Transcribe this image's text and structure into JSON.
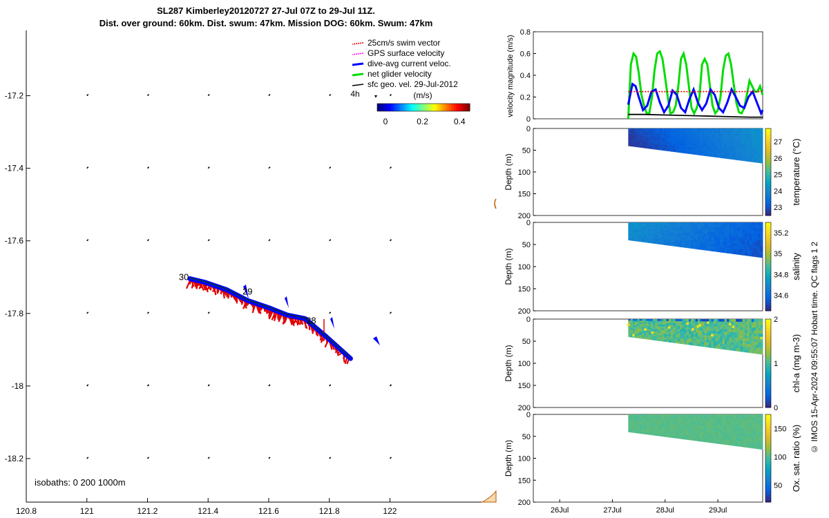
{
  "header": {
    "title_line1": "SL287 Kimberley20120727 27-Jul 07Z to 29-Jul 11Z.",
    "title_line2": "Dist. over ground: 60km. Dist. swum: 47km. Mission DOG: 60km. Swum: 47km"
  },
  "footer": {
    "credit": "© IMOS 15-Apr-2024 09:55:07 Hobart time. QC flags 1  2"
  },
  "colors": {
    "swim": "#e00000",
    "gps": "#ff00ff",
    "current": "#0000ff",
    "net": "#00dd00",
    "sfc": "#000000"
  },
  "chart_data": [
    {
      "type": "map",
      "name": "glider-track-map",
      "xlim": [
        120.8,
        122.35
      ],
      "ylim": [
        -18.32,
        -17.02
      ],
      "x_ticks": [
        120.8,
        121,
        121.2,
        121.4,
        121.6,
        121.8,
        122
      ],
      "x_tick_labels": [
        "120.8",
        "121",
        "121.2",
        "121.4",
        "121.6",
        "121.8",
        "122"
      ],
      "y_ticks": [
        -17.2,
        -17.4,
        -17.6,
        -17.8,
        -18,
        -18.2
      ],
      "y_tick_labels": [
        "-17.2",
        "-17.4",
        "-17.6",
        "-17.8",
        "-18",
        "-18.2"
      ],
      "legend": [
        {
          "label": "25cm/s swim vector",
          "color": "#e00000"
        },
        {
          "label": "GPS surface velocity",
          "color": "#ff00ff"
        },
        {
          "label": "dive-avg current veloc.",
          "color": "#0000ff"
        },
        {
          "label": "net glider velocity",
          "color": "#00dd00"
        },
        {
          "label": "sfc geo. vel. 29-Jul-2012",
          "color": "#000000"
        }
      ],
      "legend_extra": "4h",
      "colorbar": {
        "label": "(m/s)",
        "range": [
          0,
          0.5
        ],
        "ticks": [
          "0",
          "0.2",
          "0.4"
        ]
      },
      "isobaths_label": "isobaths: 0   200  1000m",
      "track": [
        {
          "lon": 121.34,
          "lat": -17.71
        },
        {
          "lon": 121.39,
          "lat": -17.72
        },
        {
          "lon": 121.46,
          "lat": -17.74
        },
        {
          "lon": 121.53,
          "lat": -17.77
        },
        {
          "lon": 121.6,
          "lat": -17.79
        },
        {
          "lon": 121.66,
          "lat": -17.81
        },
        {
          "lon": 121.72,
          "lat": -17.82
        },
        {
          "lon": 121.79,
          "lat": -17.87
        },
        {
          "lon": 121.87,
          "lat": -17.93
        }
      ],
      "day_labels": [
        {
          "text": "30",
          "lon": 121.32,
          "lat": -17.7
        },
        {
          "text": "29",
          "lon": 121.53,
          "lat": -17.74
        },
        {
          "text": "28",
          "lon": 121.74,
          "lat": -17.82
        }
      ],
      "sfc_vector_grid": {
        "lons": [
          121.0,
          121.2,
          121.4,
          121.6,
          121.8,
          122.0
        ],
        "lats": [
          -17.2,
          -17.4,
          -17.6,
          -17.8,
          -18.0,
          -18.2
        ]
      }
    },
    {
      "type": "line",
      "name": "velocity-magnitude",
      "ylabel": "velocity magnitude (m/s)",
      "ylim": [
        0,
        0.8
      ],
      "y_ticks": [
        0,
        0.2,
        0.4,
        0.6,
        0.8
      ],
      "xlim": [
        25.5,
        29.85
      ],
      "x_ticks": [
        26,
        27,
        28,
        29
      ],
      "x_tick_labels": [
        "26Jul",
        "27Jul",
        "28Jul",
        "29Jul"
      ],
      "series": [
        {
          "color": "#00dd00",
          "x": [
            27.3,
            27.35,
            27.4,
            27.45,
            27.5,
            27.55,
            27.6,
            27.65,
            27.7,
            27.75,
            27.8,
            27.85,
            27.9,
            27.95,
            28.0,
            28.05,
            28.1,
            28.15,
            28.2,
            28.25,
            28.3,
            28.35,
            28.4,
            28.45,
            28.5,
            28.55,
            28.6,
            28.65,
            28.7,
            28.75,
            28.8,
            28.85,
            28.9,
            28.95,
            29.0,
            29.05,
            29.1,
            29.15,
            29.2,
            29.25,
            29.3,
            29.35,
            29.4,
            29.45,
            29.5,
            29.55,
            29.6,
            29.65,
            29.7,
            29.75,
            29.8,
            29.85
          ],
          "values": [
            0.0,
            0.5,
            0.6,
            0.57,
            0.42,
            0.22,
            0.12,
            0.05,
            0.05,
            0.2,
            0.45,
            0.6,
            0.62,
            0.55,
            0.38,
            0.2,
            0.05,
            0.06,
            0.12,
            0.3,
            0.55,
            0.6,
            0.5,
            0.3,
            0.1,
            0.05,
            0.1,
            0.2,
            0.5,
            0.55,
            0.5,
            0.3,
            0.12,
            0.05,
            0.08,
            0.2,
            0.45,
            0.58,
            0.6,
            0.5,
            0.32,
            0.15,
            0.06,
            0.05,
            0.1,
            0.22,
            0.35,
            0.3,
            0.25,
            0.25,
            0.3,
            0.22
          ]
        },
        {
          "color": "#0000ff",
          "x": [
            27.3,
            27.38,
            27.44,
            27.5,
            27.58,
            27.66,
            27.74,
            27.82,
            27.9,
            27.98,
            28.06,
            28.14,
            28.22,
            28.3,
            28.38,
            28.46,
            28.54,
            28.62,
            28.7,
            28.78,
            28.86,
            28.94,
            29.02,
            29.1,
            29.18,
            29.26,
            29.34,
            29.42,
            29.5,
            29.58,
            29.66,
            29.74,
            29.82,
            29.85
          ],
          "values": [
            0.13,
            0.32,
            0.3,
            0.2,
            0.08,
            0.12,
            0.25,
            0.27,
            0.15,
            0.06,
            0.12,
            0.26,
            0.22,
            0.1,
            0.06,
            0.18,
            0.27,
            0.15,
            0.08,
            0.14,
            0.27,
            0.22,
            0.1,
            0.06,
            0.15,
            0.27,
            0.2,
            0.12,
            0.1,
            0.2,
            0.25,
            0.15,
            0.05,
            0.08
          ]
        },
        {
          "color": "#e00000",
          "style": "dotted",
          "x": [
            27.3,
            29.85
          ],
          "values": [
            0.25,
            0.25
          ]
        },
        {
          "color": "#000000",
          "x": [
            27.3,
            27.6,
            28.0,
            28.4,
            28.8,
            29.2,
            29.6,
            29.85
          ],
          "values": [
            0.04,
            0.04,
            0.035,
            0.03,
            0.025,
            0.02,
            0.015,
            0.015
          ]
        }
      ]
    },
    {
      "type": "heatmap",
      "name": "temperature-section",
      "ylabel": "Depth (m)",
      "ylim": [
        0,
        200
      ],
      "y_ticks": [
        0,
        50,
        100,
        150,
        200
      ],
      "colorbar_label": "temperature (°C)",
      "colorbar_range": [
        22.5,
        27.8
      ],
      "colorbar_ticks": [
        23,
        24,
        25,
        26,
        27
      ],
      "x_range": [
        27.3,
        29.85
      ],
      "max_depth_start": 40,
      "max_depth_end": 80,
      "value_start": 22.8,
      "value_end": 24.2,
      "colormap": "parula"
    },
    {
      "type": "heatmap",
      "name": "salinity-section",
      "ylabel": "Depth (m)",
      "ylim": [
        0,
        200
      ],
      "y_ticks": [
        0,
        50,
        100,
        150,
        200
      ],
      "colorbar_label": "salinity",
      "colorbar_range": [
        34.45,
        35.3
      ],
      "colorbar_ticks": [
        34.6,
        34.8,
        35,
        35.2
      ],
      "x_range": [
        27.3,
        29.85
      ],
      "max_depth_start": 40,
      "max_depth_end": 80,
      "value_start": 34.72,
      "value_end": 34.55,
      "colormap": "parula"
    },
    {
      "type": "heatmap",
      "name": "chla-section",
      "ylabel": "Depth (m)",
      "ylim": [
        0,
        200
      ],
      "y_ticks": [
        0,
        50,
        100,
        150,
        200
      ],
      "colorbar_label": "chl-a (mg m-3)",
      "colorbar_range": [
        0,
        2
      ],
      "colorbar_ticks": [
        0,
        1,
        2
      ],
      "x_range": [
        27.3,
        29.85
      ],
      "max_depth_start": 40,
      "max_depth_end": 80,
      "value_start": 1.05,
      "value_end": 1.05,
      "colormap": "parula"
    },
    {
      "type": "heatmap",
      "name": "oxygen-section",
      "ylabel": "Depth (m)",
      "ylim": [
        0,
        200
      ],
      "y_ticks": [
        0,
        50,
        100,
        150,
        200
      ],
      "colorbar_label": "Ox. sat. ratio (%)",
      "colorbar_range": [
        20,
        175
      ],
      "colorbar_ticks": [
        50,
        100,
        150
      ],
      "x_range": [
        27.3,
        29.85
      ],
      "max_depth_start": 40,
      "max_depth_end": 80,
      "value_start": 103,
      "value_end": 103,
      "colormap": "parula"
    }
  ]
}
